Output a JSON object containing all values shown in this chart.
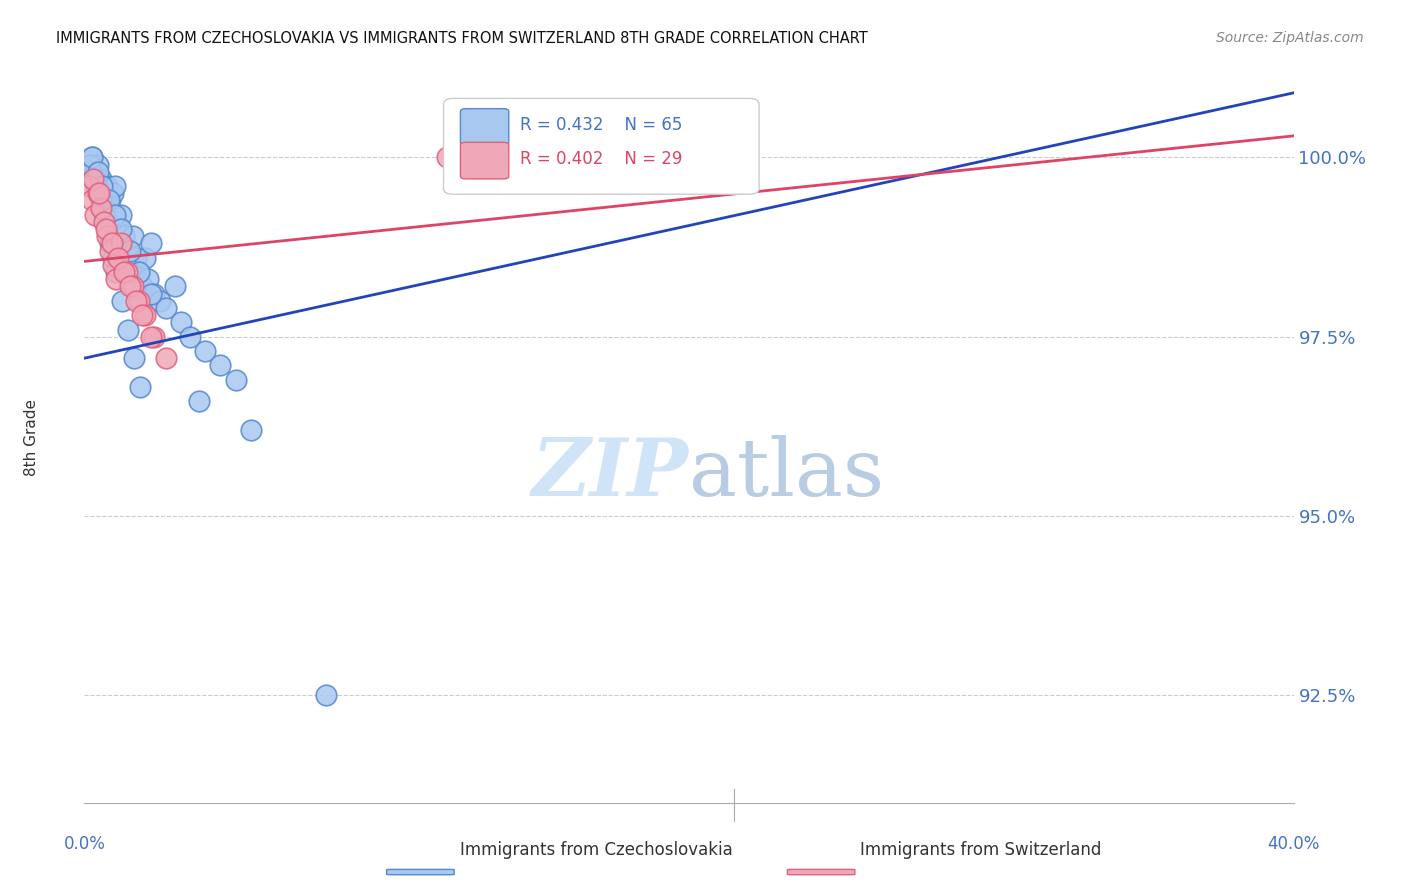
{
  "title": "IMMIGRANTS FROM CZECHOSLOVAKIA VS IMMIGRANTS FROM SWITZERLAND 8TH GRADE CORRELATION CHART",
  "source": "Source: ZipAtlas.com",
  "ylabel": "8th Grade",
  "ylabel_right_ticks": [
    100.0,
    97.5,
    95.0,
    92.5
  ],
  "xlim": [
    0.0,
    40.0
  ],
  "ylim": [
    91.0,
    101.2
  ],
  "yticks": [
    92.5,
    95.0,
    97.5,
    100.0
  ],
  "legend_blue_r": "R = 0.432",
  "legend_blue_n": "N = 65",
  "legend_pink_r": "R = 0.402",
  "legend_pink_n": "N = 29",
  "blue_color": "#a8c8f0",
  "pink_color": "#f0a8b8",
  "blue_edge_color": "#5588cc",
  "pink_edge_color": "#e06080",
  "blue_line_color": "#2244bb",
  "pink_line_color": "#dd4466",
  "axis_label_color": "#4472c4",
  "watermark_color": "#d0e4f8",
  "blue_scatter_x": [
    0.15,
    0.2,
    0.25,
    0.3,
    0.35,
    0.4,
    0.45,
    0.5,
    0.55,
    0.6,
    0.65,
    0.7,
    0.75,
    0.8,
    0.85,
    0.9,
    0.95,
    1.0,
    1.05,
    1.1,
    1.15,
    1.2,
    1.3,
    1.4,
    1.5,
    1.6,
    1.7,
    1.8,
    1.9,
    2.0,
    2.1,
    2.2,
    2.3,
    2.5,
    2.7,
    3.0,
    3.2,
    3.5,
    4.0,
    4.5,
    5.0,
    0.2,
    0.35,
    0.55,
    0.65,
    0.75,
    0.85,
    0.95,
    1.05,
    1.25,
    1.45,
    1.65,
    1.85,
    0.25,
    0.45,
    0.6,
    0.8,
    1.0,
    1.2,
    1.5,
    1.8,
    2.2,
    3.8,
    5.5,
    8.0
  ],
  "blue_scatter_y": [
    99.9,
    99.8,
    100.0,
    99.7,
    99.8,
    99.6,
    99.9,
    99.5,
    99.7,
    99.4,
    99.3,
    99.5,
    99.6,
    99.3,
    99.4,
    99.2,
    99.5,
    99.6,
    99.1,
    99.0,
    98.8,
    99.2,
    98.9,
    98.7,
    98.5,
    98.9,
    98.6,
    98.4,
    98.2,
    98.6,
    98.3,
    98.8,
    98.1,
    98.0,
    97.9,
    98.2,
    97.7,
    97.5,
    97.3,
    97.1,
    96.9,
    99.9,
    99.7,
    99.4,
    99.2,
    99.0,
    98.8,
    98.6,
    98.4,
    98.0,
    97.6,
    97.2,
    96.8,
    100.0,
    99.8,
    99.6,
    99.4,
    99.2,
    99.0,
    98.7,
    98.4,
    98.1,
    96.6,
    96.2,
    92.5
  ],
  "pink_scatter_x": [
    0.15,
    0.25,
    0.35,
    0.45,
    0.55,
    0.65,
    0.75,
    0.85,
    0.95,
    1.05,
    1.2,
    1.4,
    1.6,
    1.8,
    2.0,
    2.3,
    2.7,
    0.3,
    0.5,
    0.7,
    0.9,
    1.1,
    1.3,
    1.5,
    1.7,
    1.9,
    2.2,
    12.0,
    19.0
  ],
  "pink_scatter_y": [
    99.6,
    99.4,
    99.2,
    99.5,
    99.3,
    99.1,
    98.9,
    98.7,
    98.5,
    98.3,
    98.8,
    98.4,
    98.2,
    98.0,
    97.8,
    97.5,
    97.2,
    99.7,
    99.5,
    99.0,
    98.8,
    98.6,
    98.4,
    98.2,
    98.0,
    97.8,
    97.5,
    100.0,
    99.8
  ],
  "blue_trendline_x": [
    0.0,
    40.0
  ],
  "blue_trendline_y": [
    97.2,
    100.9
  ],
  "pink_trendline_x": [
    0.0,
    40.0
  ],
  "pink_trendline_y": [
    98.55,
    100.3
  ]
}
